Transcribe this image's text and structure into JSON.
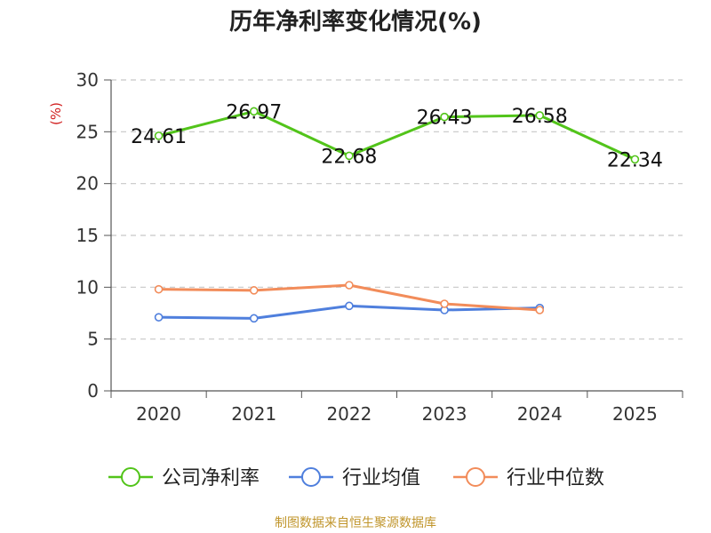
{
  "chart_data": {
    "type": "line",
    "title": "历年净利率变化情况(%)",
    "ylabel": "(%)",
    "xlabel": "",
    "categories": [
      "2020",
      "2021",
      "2022",
      "2023",
      "2024",
      "2025"
    ],
    "ylim": [
      0,
      30
    ],
    "yticks": [
      0,
      5,
      10,
      15,
      20,
      25,
      30
    ],
    "grid": true,
    "legend_position": "bottom-center",
    "series": [
      {
        "name": "公司净利率",
        "color": "#52c41a",
        "values": [
          24.61,
          26.97,
          22.68,
          26.43,
          26.58,
          22.34
        ],
        "labels": [
          "24.61",
          "26.97",
          "22.68",
          "26.43",
          "26.58",
          "22.34"
        ]
      },
      {
        "name": "行业均值",
        "color": "#4f7fdd",
        "values": [
          7.1,
          7.0,
          8.2,
          7.8,
          8.0,
          null
        ]
      },
      {
        "name": "行业中位数",
        "color": "#f28c5a",
        "values": [
          9.8,
          9.7,
          10.2,
          8.4,
          7.8,
          null
        ]
      }
    ],
    "source": "制图数据来自恒生聚源数据库"
  }
}
